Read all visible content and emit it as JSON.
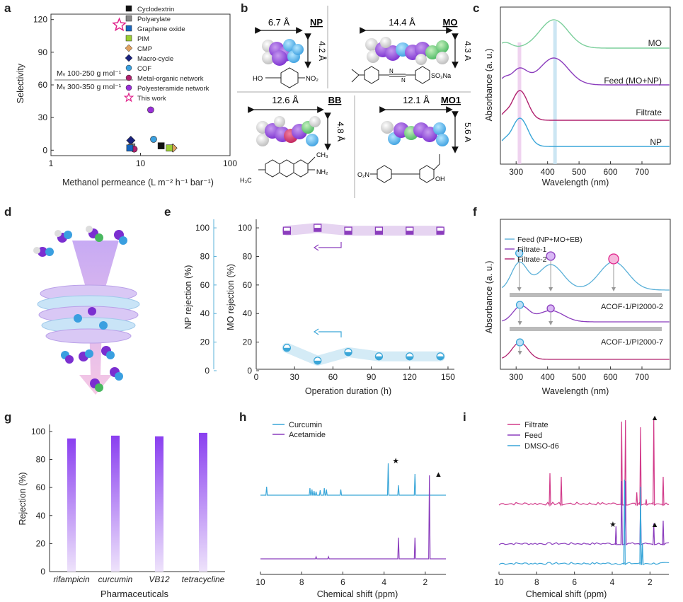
{
  "panel_labels": {
    "a": "a",
    "b": "b",
    "c": "c",
    "d": "d",
    "e": "e",
    "f": "f",
    "g": "g",
    "h": "h",
    "i": "i"
  },
  "chart_data": [
    {
      "id": "a",
      "type": "scatter",
      "xlabel": "Methanol permeance (L m⁻² h⁻¹ bar⁻¹)",
      "ylabel": "Selectivity",
      "xscale": "log",
      "xlim": [
        1,
        100
      ],
      "ylim": [
        -5,
        125
      ],
      "xticks": [
        "1",
        "10",
        "100"
      ],
      "yticks": [
        0,
        30,
        60,
        90,
        120
      ],
      "legend": [
        "Cyclodextrin",
        "Polyarylate",
        "Graphene oxide",
        "PIM",
        "CMP",
        "Macro-cycle",
        "COF",
        "Metal-organic network",
        "Polyesteramide network",
        "This work"
      ],
      "region_labels": [
        "Mᵥ 100-250 g mol⁻¹",
        "Mᵥ 300-350 g mol⁻¹"
      ],
      "points": [
        {
          "series": "This work",
          "x": 5.8,
          "y": 115,
          "color": "#e0218a",
          "marker": "star"
        },
        {
          "series": "Polyesteramide network",
          "x": 13,
          "y": 37,
          "color": "#9b30d9",
          "marker": "circle-half"
        },
        {
          "series": "COF",
          "x": 14,
          "y": 10,
          "color": "#3aa0e0",
          "marker": "circle-half"
        },
        {
          "series": "Macro-cycle",
          "x": 7.8,
          "y": 9,
          "color": "#1a237e",
          "marker": "diamond"
        },
        {
          "series": "Cyclodextrin",
          "x": 17,
          "y": 4,
          "color": "#111111",
          "marker": "square"
        },
        {
          "series": "CMP",
          "x": 23,
          "y": 2,
          "color": "#e0a060",
          "marker": "diamond"
        },
        {
          "series": "PIM",
          "x": 21,
          "y": 2,
          "color": "#9acd32",
          "marker": "square"
        },
        {
          "series": "Polyarylate",
          "x": 8,
          "y": 3,
          "color": "#888888",
          "marker": "square"
        },
        {
          "series": "Metal-organic network",
          "x": 8.5,
          "y": 1,
          "color": "#b0206e",
          "marker": "circle"
        },
        {
          "series": "Graphene oxide",
          "x": 7.6,
          "y": 2,
          "color": "#1565c0",
          "marker": "square"
        }
      ]
    },
    {
      "id": "c",
      "type": "line",
      "xlabel": "Wavelength (nm)",
      "ylabel": "Absorbance (a. u.)",
      "xlim": [
        250,
        790
      ],
      "xticks": [
        300,
        400,
        500,
        600,
        700
      ],
      "series": [
        {
          "name": "MO",
          "color": "#7ccf9c"
        },
        {
          "name": "Feed (MO+NP)",
          "color": "#8b3dbd"
        },
        {
          "name": "Filtrate",
          "color": "#b0206e"
        },
        {
          "name": "NP",
          "color": "#3aa6d8"
        }
      ]
    },
    {
      "id": "e",
      "type": "scatter",
      "xlabel": "Operation duration (h)",
      "ylabel_left": "NP rejection (%)",
      "ylabel_right": "MO rejection (%)",
      "xlim": [
        0,
        155
      ],
      "ylim": [
        0,
        105
      ],
      "xticks": [
        0,
        30,
        60,
        90,
        120,
        150
      ],
      "yticks": [
        0,
        20,
        40,
        60,
        80,
        100
      ],
      "series": [
        {
          "name": "MO",
          "color": "#8b3dbd",
          "x": [
            24,
            48,
            72,
            96,
            120,
            144
          ],
          "y": [
            98,
            100,
            98,
            98,
            98,
            98
          ]
        },
        {
          "name": "NP",
          "color": "#3aa6d8",
          "x": [
            24,
            48,
            72,
            96,
            120,
            144
          ],
          "y": [
            16,
            7,
            13,
            10,
            10,
            10
          ]
        }
      ]
    },
    {
      "id": "f",
      "type": "line",
      "xlabel": "Wavelength (nm)",
      "ylabel": "Absorbance (a. u.)",
      "xlim": [
        250,
        790
      ],
      "xticks": [
        300,
        400,
        500,
        600,
        700
      ],
      "legend": [
        "Feed (NP+MO+EB)",
        "Filtrate-1",
        "Filtrate-2"
      ],
      "annotations": [
        "ACOF-1/PI2000-2",
        "ACOF-1/PI2000-7"
      ],
      "series": [
        {
          "name": "Feed (NP+MO+EB)",
          "color": "#5ab0d8"
        },
        {
          "name": "Filtrate-1",
          "color": "#8b3dbd"
        },
        {
          "name": "Filtrate-2",
          "color": "#b0206e"
        }
      ]
    },
    {
      "id": "g",
      "type": "bar",
      "xlabel": "Pharmaceuticals",
      "ylabel": "Rejection (%)",
      "ylim": [
        0,
        105
      ],
      "yticks": [
        0,
        20,
        40,
        60,
        80,
        100
      ],
      "categories": [
        "rifampicin",
        "curcumin",
        "VB12",
        "tetracycline"
      ],
      "values": [
        95,
        97,
        96.5,
        99
      ],
      "color": "#8a3ff0"
    },
    {
      "id": "h",
      "type": "line",
      "xlabel": "Chemical shift (ppm)",
      "xlim": [
        10,
        1
      ],
      "xticks": [
        10,
        8,
        6,
        4,
        2
      ],
      "legend": [
        "Curcumin",
        "Acetamide"
      ],
      "series": [
        {
          "name": "Curcumin",
          "color": "#3aa6d8"
        },
        {
          "name": "Acetamide",
          "color": "#8b3dbd"
        }
      ],
      "markers": [
        "★",
        "▲"
      ]
    },
    {
      "id": "i",
      "type": "line",
      "xlabel": "Chemical shift (ppm)",
      "xlim": [
        10,
        1
      ],
      "xticks": [
        10,
        8,
        6,
        4,
        2
      ],
      "legend": [
        "Filtrate",
        "Feed",
        "DMSO-d6"
      ],
      "series": [
        {
          "name": "Filtrate",
          "color": "#d23b8a"
        },
        {
          "name": "Feed",
          "color": "#8b3dbd"
        },
        {
          "name": "DMSO-d6",
          "color": "#3aa6d8"
        }
      ],
      "markers": [
        "★",
        "▲"
      ]
    }
  ],
  "panel_b": {
    "np_size": "6.7 Å",
    "np_name": "NP",
    "np_height": "4.2 Å",
    "mo_size": "14.4 Å",
    "mo_name": "MO",
    "mo_height": "4.3 Å",
    "bb_size": "12.6 Å",
    "bb_name": "BB",
    "bb_height": "4.8 Å",
    "mo1_size": "12.1 Å",
    "mo1_name": "MO1",
    "mo1_height": "5.6 Å",
    "np_formula_left": "HO",
    "np_formula_right": "NO₂",
    "mo_formula_right": "SO₃Na",
    "mo_formula_n": "N",
    "bb_formula_left": "H₃C",
    "bb_formula_right": "NH₂",
    "bb_formula_top": "CH₃",
    "mo1_formula_left": "O₂N",
    "mo1_formula_right": "OH"
  },
  "colors": {
    "purple": "#8b3dbd",
    "blue": "#3aa6d8",
    "magenta": "#b0206e",
    "green": "#7ccf9c",
    "pink": "#e0218a"
  }
}
